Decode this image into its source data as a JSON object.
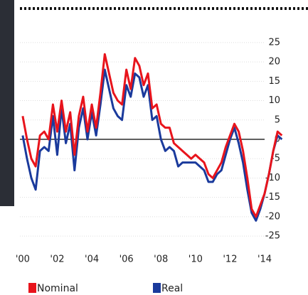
{
  "chart_data": {
    "type": "line",
    "x": [
      2000,
      2000.25,
      2000.5,
      2000.75,
      2001,
      2001.25,
      2001.5,
      2001.75,
      2002,
      2002.25,
      2002.5,
      2002.75,
      2003,
      2003.25,
      2003.5,
      2003.75,
      2004,
      2004.25,
      2004.5,
      2004.75,
      2005,
      2005.25,
      2005.5,
      2005.75,
      2006,
      2006.25,
      2006.5,
      2006.75,
      2007,
      2007.25,
      2007.5,
      2007.75,
      2008,
      2008.25,
      2008.5,
      2008.75,
      2009,
      2009.25,
      2009.5,
      2009.75,
      2010,
      2010.25,
      2010.5,
      2010.75,
      2011,
      2011.25,
      2011.5,
      2011.75,
      2012,
      2012.25,
      2012.5,
      2012.75,
      2013,
      2013.25,
      2013.5,
      2013.75,
      2014,
      2014.25,
      2014.5,
      2014.75,
      2015
    ],
    "series": [
      {
        "name": "Nominal",
        "color": "#e8141c",
        "values": [
          6,
          0,
          -5,
          -7,
          1,
          2,
          0,
          9,
          2,
          10,
          2,
          7,
          -4,
          6,
          11,
          2,
          9,
          3,
          12,
          22,
          17,
          12,
          10,
          9,
          18,
          13,
          21,
          19,
          14,
          17,
          8,
          9,
          4,
          3,
          3,
          -1,
          -2,
          -3,
          -4,
          -5,
          -4,
          -5,
          -6,
          -9,
          -10,
          -8,
          -6,
          -2,
          1,
          4,
          2,
          -3,
          -10,
          -18,
          -20,
          -17,
          -14,
          -9,
          -3,
          2,
          1
        ]
      },
      {
        "name": "Real",
        "color": "#1a3a9c",
        "values": [
          1,
          -5,
          -10,
          -13,
          -3,
          -2,
          -3,
          6,
          -4,
          8,
          -1,
          4,
          -8,
          3,
          8,
          0,
          7,
          1,
          9,
          18,
          13,
          8,
          6,
          5,
          14,
          11,
          17,
          16,
          11,
          14,
          5,
          6,
          0,
          -3,
          -2,
          -3,
          -7,
          -6,
          -6,
          -6,
          -6,
          -7,
          -8,
          -11,
          -11,
          -9,
          -8,
          -4,
          0,
          3,
          -1,
          -6,
          -13,
          -19,
          -21,
          -18,
          -14,
          -9,
          -3,
          1,
          0
        ]
      }
    ],
    "xlim": [
      1999.84,
      2015.07
    ],
    "xticks": [
      {
        "value": 2000,
        "label": "'00"
      },
      {
        "value": 2002,
        "label": "'02"
      },
      {
        "value": 2004,
        "label": "'04"
      },
      {
        "value": 2006,
        "label": "'06"
      },
      {
        "value": 2008,
        "label": "'08"
      },
      {
        "value": 2010,
        "label": "'10"
      },
      {
        "value": 2012,
        "label": "'12"
      },
      {
        "value": 2014,
        "label": "'14"
      }
    ],
    "ylim": [
      -27,
      27
    ],
    "yticks": [
      25,
      20,
      15,
      10,
      5,
      0,
      -5,
      -10,
      -15,
      -20,
      -25
    ],
    "grid": true
  }
}
